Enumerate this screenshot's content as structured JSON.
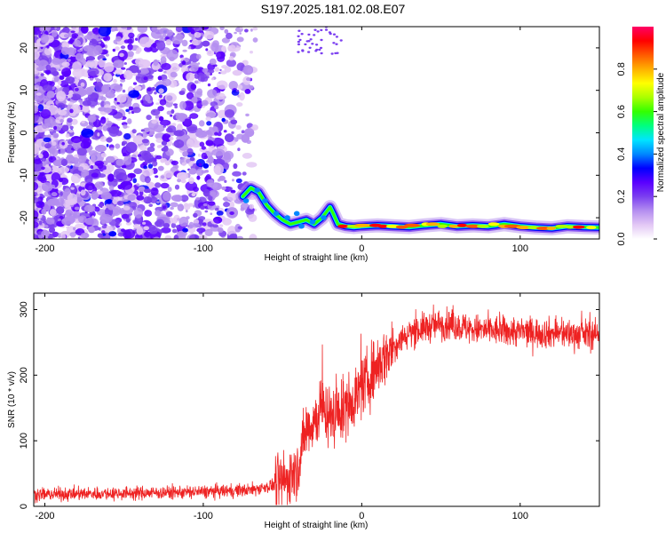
{
  "title": "S197.2025.181.02.08.E07",
  "chart_data": [
    {
      "type": "heatmap",
      "xlabel": "Height of straight line (km)",
      "ylabel": "Frequency (Hz)",
      "xlim": [
        -207,
        150
      ],
      "ylim": [
        -25,
        25
      ],
      "xticks": [
        -200,
        -100,
        0,
        100
      ],
      "yticks": [
        -20,
        -10,
        0,
        10,
        20
      ],
      "colorbar": {
        "label": "Normalized spectral amplitude",
        "range": [
          0,
          1
        ],
        "ticks": [
          0.0,
          0.2,
          0.4,
          0.6,
          0.8
        ],
        "colors": [
          "#ffffff",
          "#e3c8f5",
          "#b48ef0",
          "#7b3ff0",
          "#5a00ff",
          "#0000ff",
          "#0088ff",
          "#00e5ff",
          "#00ff7f",
          "#33ff00",
          "#aaff00",
          "#ffff00",
          "#ffb000",
          "#ff5a00",
          "#ff0000",
          "#ff0066"
        ]
      },
      "ridge": {
        "x": [
          -75,
          -70,
          -65,
          -60,
          -55,
          -50,
          -45,
          -40,
          -35,
          -30,
          -25,
          -22,
          -20,
          -18,
          -15,
          -10,
          -5,
          0,
          10,
          20,
          30,
          40,
          50,
          60,
          70,
          80,
          90,
          100,
          110,
          120,
          130,
          140,
          150
        ],
        "y": [
          -15,
          -13,
          -14,
          -17,
          -19,
          -20.5,
          -21.5,
          -21,
          -20.5,
          -21.5,
          -20,
          -18.5,
          -17.5,
          -19,
          -21.5,
          -22,
          -22.2,
          -22,
          -21.8,
          -22,
          -22.2,
          -21.8,
          -21.5,
          -22,
          -21.8,
          -22,
          -21.5,
          -22,
          -22.3,
          -22.5,
          -22,
          -22.2,
          -22.3
        ]
      }
    },
    {
      "type": "line",
      "xlabel": "Height of straight line (km)",
      "ylabel": "SNR (10 * v/v)",
      "xlim": [
        -207,
        150
      ],
      "ylim": [
        0,
        325
      ],
      "xticks": [
        -200,
        -100,
        0,
        100
      ],
      "yticks": [
        0,
        100,
        200,
        300
      ],
      "color": "#ee2222",
      "trend": {
        "x": [
          -207,
          -150,
          -100,
          -70,
          -50,
          -40,
          -35,
          -30,
          -25,
          -20,
          -15,
          -10,
          -5,
          0,
          10,
          20,
          30,
          40,
          50,
          60,
          70,
          80,
          100,
          120,
          140,
          150
        ],
        "y": [
          18,
          20,
          22,
          25,
          35,
          60,
          120,
          130,
          150,
          135,
          140,
          150,
          165,
          180,
          215,
          245,
          265,
          272,
          278,
          275,
          270,
          268,
          266,
          264,
          262,
          262
        ]
      }
    }
  ]
}
